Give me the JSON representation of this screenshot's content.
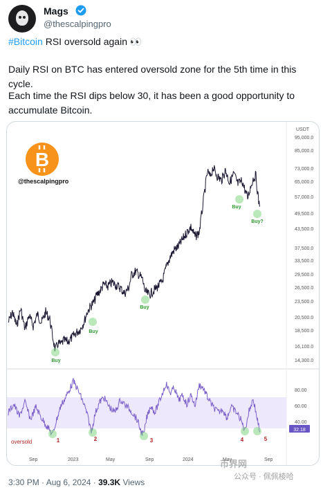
{
  "author": {
    "name": "Mags",
    "handle": "@thescalpingpro"
  },
  "tweet": {
    "hashtag": "#Bitcoin",
    "headline_rest": " RSI oversold again 👀",
    "para1": "Daily RSI on BTC has entered oversold zone for the 5th time in this cycle.",
    "para2": "Each time the RSI dips below 30, it has been a good opportunity to accumulate Bitcoin."
  },
  "chart": {
    "watermark_handle": "@thescalpingpro",
    "currency_label": "USDT",
    "price_ticks": [
      "95,000.0",
      "85,000.0",
      "73,000.0",
      "65,000.0",
      "57,000.0",
      "49,500.0",
      "43,500.0",
      "37,500.0",
      "33,500.0",
      "29,500.0",
      "26,500.0",
      "23,500.0",
      "20,500.0",
      "18,500.0",
      "16,100.0",
      "14,300.0"
    ],
    "rsi_ticks": [
      "80.00",
      "60.00",
      "40.00"
    ],
    "rsi_current": "32.18",
    "oversold_label": "oversold",
    "x_labels": [
      "Sep",
      "2023",
      "May",
      "Sep",
      "2024",
      "May",
      "Sep"
    ],
    "buy_labels": [
      "Buy",
      "Buy",
      "Buy",
      "Buy",
      "Buy?"
    ],
    "rsi_markers": [
      "1",
      "2",
      "3",
      "4",
      "5"
    ],
    "colors": {
      "price_line": "#1a1530",
      "rsi_line": "#7b5fc9",
      "rsi_band": "#ede8fb",
      "buy_green": "#2e9a2e",
      "marker_red": "#b32020",
      "bitcoin_orange": "#f7931a"
    }
  },
  "footer": {
    "time": "3:30 PM · Aug 6, 2024 · ",
    "views": "39.3K",
    "views_suffix": " Views"
  },
  "watermark": {
    "logo_text": "币界网",
    "text": "公众号 · 佩佩棱哈"
  }
}
